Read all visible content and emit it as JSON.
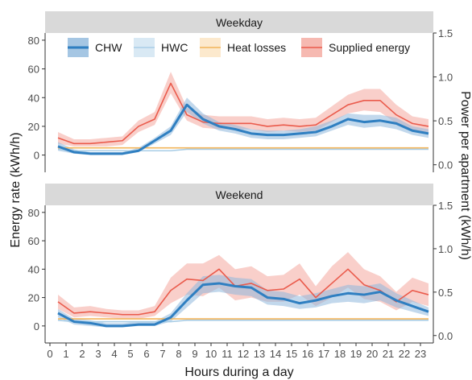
{
  "chart_data": {
    "type": "line",
    "ylabel_left": "Energy rate (kWh/h)",
    "ylabel_right": "Power per apartment (kWh/h)",
    "xlabel": "Hours during a day",
    "x_ticks": [
      0,
      1,
      2,
      3,
      4,
      5,
      6,
      7,
      8,
      9,
      10,
      11,
      12,
      13,
      14,
      15,
      16,
      17,
      18,
      19,
      20,
      21,
      22,
      23
    ],
    "ylim_left": [
      -12,
      85
    ],
    "ylim_right": [
      -0.0857,
      1.5
    ],
    "y_ticks_left": [
      0,
      20,
      40,
      60,
      80
    ],
    "y_ticks_right": [
      "0.0",
      "0.5",
      "1.0",
      "1.5"
    ],
    "legend": {
      "position": "top",
      "entries": [
        {
          "label": "CHW",
          "color": "#2f7fc1",
          "fill": "#8fb8dc"
        },
        {
          "label": "HWC",
          "color": "#a9cde6",
          "fill": "#cfe3f1"
        },
        {
          "label": "Heat losses",
          "color": "#f2b45a",
          "fill": "#fbe3c0"
        },
        {
          "label": "Supplied energy",
          "color": "#ea5b4c",
          "fill": "#f4a89e"
        }
      ]
    },
    "panels": [
      {
        "title": "Weekday",
        "x": [
          0.5,
          1.5,
          2.5,
          3.5,
          4.5,
          5.5,
          6.5,
          7.5,
          8.5,
          9.5,
          10.5,
          11.5,
          12.5,
          13.5,
          14.5,
          15.5,
          16.5,
          17.5,
          18.5,
          19.5,
          20.5,
          21.5,
          22.5,
          23.5
        ],
        "series": [
          {
            "name": "CHW",
            "values": [
              6,
              2,
              1,
              1,
              1,
              3,
              10,
              17,
              35,
              25,
              20,
              18,
              15,
              14,
              14,
              15,
              16,
              20,
              25,
              23,
              24,
              22,
              17,
              15
            ],
            "band": [
              [
                3,
                9
              ],
              [
                1,
                4
              ],
              [
                0,
                2
              ],
              [
                0,
                2
              ],
              [
                0,
                2
              ],
              [
                2,
                5
              ],
              [
                8,
                12
              ],
              [
                14,
                20
              ],
              [
                30,
                40
              ],
              [
                22,
                29
              ],
              [
                17,
                23
              ],
              [
                15,
                21
              ],
              [
                12,
                18
              ],
              [
                11,
                17
              ],
              [
                11,
                17
              ],
              [
                12,
                18
              ],
              [
                13,
                20
              ],
              [
                17,
                24
              ],
              [
                21,
                29
              ],
              [
                19,
                28
              ],
              [
                20,
                28
              ],
              [
                18,
                26
              ],
              [
                14,
                20
              ],
              [
                12,
                18
              ]
            ]
          },
          {
            "name": "HWC",
            "values": [
              4,
              3,
              3,
              3,
              3,
              3,
              3,
              3,
              4,
              4,
              4,
              4,
              4,
              4,
              4,
              4,
              4,
              4,
              4,
              4,
              4,
              4,
              4,
              4
            ]
          },
          {
            "name": "Heat losses",
            "values": [
              5,
              5,
              5,
              5,
              5,
              5,
              5,
              5,
              5,
              5,
              5,
              5,
              5,
              5,
              5,
              5,
              5,
              5,
              5,
              5,
              5,
              5,
              5,
              5
            ]
          },
          {
            "name": "Supplied energy",
            "values": [
              12,
              8,
              8,
              9,
              10,
              20,
              25,
              50,
              28,
              23,
              22,
              22,
              22,
              20,
              21,
              20,
              21,
              28,
              35,
              38,
              38,
              28,
              22,
              20
            ],
            "band": [
              [
                8,
                16
              ],
              [
                6,
                11
              ],
              [
                6,
                11
              ],
              [
                6,
                12
              ],
              [
                7,
                13
              ],
              [
                16,
                24
              ],
              [
                21,
                30
              ],
              [
                43,
                58
              ],
              [
                24,
                33
              ],
              [
                19,
                28
              ],
              [
                18,
                27
              ],
              [
                18,
                27
              ],
              [
                18,
                27
              ],
              [
                16,
                25
              ],
              [
                17,
                26
              ],
              [
                16,
                25
              ],
              [
                17,
                26
              ],
              [
                23,
                34
              ],
              [
                29,
                42
              ],
              [
                31,
                46
              ],
              [
                30,
                46
              ],
              [
                22,
                35
              ],
              [
                17,
                27
              ],
              [
                16,
                25
              ]
            ]
          }
        ]
      },
      {
        "title": "Weekend",
        "x": [
          0.5,
          1.5,
          2.5,
          3.5,
          4.5,
          5.5,
          6.5,
          7.5,
          8.5,
          9.5,
          10.5,
          11.5,
          12.5,
          13.5,
          14.5,
          15.5,
          16.5,
          17.5,
          18.5,
          19.5,
          20.5,
          21.5,
          22.5,
          23.5
        ],
        "series": [
          {
            "name": "CHW",
            "values": [
              9,
              3,
              2,
              0,
              0,
              1,
              1,
              6,
              18,
              29,
              30,
              28,
              27,
              20,
              19,
              16,
              18,
              21,
              23,
              22,
              24,
              18,
              14,
              10
            ],
            "band": [
              [
                6,
                12
              ],
              [
                1,
                5
              ],
              [
                0,
                4
              ],
              [
                -1,
                2
              ],
              [
                -1,
                2
              ],
              [
                0,
                3
              ],
              [
                0,
                3
              ],
              [
                3,
                9
              ],
              [
                13,
                23
              ],
              [
                23,
                35
              ],
              [
                24,
                36
              ],
              [
                22,
                34
              ],
              [
                21,
                33
              ],
              [
                15,
                25
              ],
              [
                14,
                24
              ],
              [
                12,
                21
              ],
              [
                13,
                23
              ],
              [
                16,
                26
              ],
              [
                17,
                29
              ],
              [
                16,
                28
              ],
              [
                18,
                30
              ],
              [
                13,
                23
              ],
              [
                10,
                18
              ],
              [
                7,
                13
              ]
            ]
          },
          {
            "name": "HWC",
            "values": [
              4,
              3,
              3,
              3,
              3,
              3,
              3,
              3,
              4,
              4,
              4,
              4,
              4,
              4,
              4,
              4,
              4,
              4,
              4,
              4,
              4,
              4,
              4,
              4
            ]
          },
          {
            "name": "Heat losses",
            "values": [
              5,
              5,
              5,
              5,
              5,
              5,
              5,
              5,
              5,
              5,
              5,
              5,
              5,
              5,
              5,
              5,
              5,
              5,
              5,
              5,
              5,
              5,
              5,
              5
            ]
          },
          {
            "name": "Supplied energy",
            "values": [
              17,
              9,
              10,
              9,
              8,
              8,
              10,
              25,
              33,
              32,
              40,
              28,
              30,
              25,
              26,
              33,
              20,
              30,
              40,
              29,
              25,
              17,
              25,
              22
            ],
            "band": [
              [
                12,
                22
              ],
              [
                6,
                13
              ],
              [
                7,
                14
              ],
              [
                6,
                12
              ],
              [
                5,
                11
              ],
              [
                5,
                11
              ],
              [
                7,
                14
              ],
              [
                16,
                34
              ],
              [
                22,
                44
              ],
              [
                21,
                44
              ],
              [
                27,
                50
              ],
              [
                18,
                40
              ],
              [
                20,
                42
              ],
              [
                17,
                35
              ],
              [
                17,
                36
              ],
              [
                22,
                44
              ],
              [
                14,
                28
              ],
              [
                20,
                42
              ],
              [
                27,
                52
              ],
              [
                19,
                40
              ],
              [
                17,
                35
              ],
              [
                11,
                24
              ],
              [
                17,
                34
              ],
              [
                14,
                30
              ]
            ]
          }
        ]
      }
    ]
  }
}
